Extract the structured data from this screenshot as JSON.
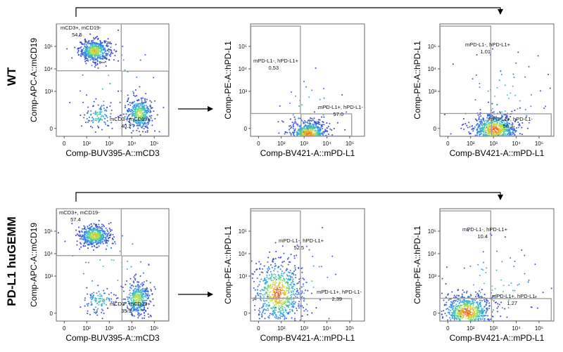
{
  "rows": [
    {
      "label": "WT"
    },
    {
      "label": "PD-L1 huGEMM"
    }
  ],
  "chart_data": [
    {
      "type": "scatter",
      "panel": "WT-CD3-CD19",
      "xlabel": "Comp-BUV395-A::mCD3",
      "ylabel": "Comp-APC-A::mCD19",
      "xticks": [
        "0",
        "10²",
        "10³",
        "10⁴",
        "10⁵"
      ],
      "yticks": [
        "0",
        "10³",
        "10⁴",
        "10⁵"
      ],
      "populations": [
        {
          "name": "mCD3+, mCD19-",
          "percent": "54.5",
          "center": [
            1.7,
            3.8
          ],
          "spread": [
            0.35,
            0.25
          ],
          "density": 0.55
        },
        {
          "name": "mCD3-, mCD19+",
          "percent": "40.2",
          "center": [
            3.7,
            1.0
          ],
          "spread": [
            0.3,
            0.38
          ],
          "density": 0.42
        },
        {
          "name": "double-negative",
          "center": [
            1.9,
            0.9
          ],
          "spread": [
            0.35,
            0.32
          ],
          "density": 0.12
        },
        {
          "name": "scatter",
          "center": [
            2.5,
            2.5
          ],
          "spread": [
            1.1,
            1.1
          ],
          "density": 0.04
        }
      ],
      "gates": [
        {
          "label": "mCD3+, mCD19-",
          "x": [
            0,
            2.9
          ],
          "y": [
            2.9,
            5.0
          ]
        },
        {
          "label": "mCD3-, mCD19+",
          "x": [
            2.9,
            5.0
          ],
          "y": [
            0,
            2.9
          ]
        }
      ]
    },
    {
      "type": "scatter",
      "panel": "WT-CD3neg-PDL1",
      "xlabel": "Comp-BV421-A::mPD-L1",
      "ylabel": "Comp-PE-A::hPD-L1",
      "xticks": [
        "0",
        "10²",
        "10³",
        "10⁴",
        "10⁵"
      ],
      "yticks": [
        "0",
        "10³",
        "10⁴",
        "10⁵"
      ],
      "populations": [
        {
          "name": "main",
          "center": [
            2.55,
            0.1
          ],
          "spread": [
            0.42,
            0.3
          ],
          "density": 0.75
        },
        {
          "name": "scatter",
          "center": [
            2.6,
            1.2
          ],
          "spread": [
            0.8,
            0.9
          ],
          "density": 0.04
        }
      ],
      "gates": [
        {
          "label": "mPD-L1-, hPD-L1+",
          "percent": "0.53",
          "x": [
            0,
            2.2
          ],
          "y": [
            1.0,
            4.9
          ]
        },
        {
          "label": "mPD-L1+, hPD-L1-",
          "percent": "57.0",
          "x": [
            2.2,
            4.45
          ],
          "y": [
            0,
            1.0
          ]
        }
      ]
    },
    {
      "type": "scatter",
      "panel": "WT-CD19pos-PDL1",
      "xlabel": "Comp-BV421-A::mPD-L1",
      "ylabel": "Comp-PE-A::hPD-L1",
      "xticks": [
        "0",
        "10²",
        "10³",
        "10⁴",
        "10⁵"
      ],
      "yticks": [
        "0",
        "10³",
        "10⁴",
        "10⁵"
      ],
      "populations": [
        {
          "name": "main",
          "center": [
            2.4,
            0.3
          ],
          "spread": [
            0.5,
            0.35
          ],
          "density": 0.8
        },
        {
          "name": "scatter",
          "center": [
            2.8,
            1.6
          ],
          "spread": [
            1.1,
            1.2
          ],
          "density": 0.07
        }
      ],
      "gates": [
        {
          "label": "mPD-L1-, hPD-L1+",
          "percent": "1.01",
          "x": [
            0,
            2.25
          ],
          "y": [
            1.0,
            4.9
          ]
        },
        {
          "label": "mPD-L1+, hPD-L1-",
          "percent": "58.3",
          "x": [
            2.25,
            4.9
          ],
          "y": [
            0,
            1.0
          ]
        }
      ]
    },
    {
      "type": "scatter",
      "panel": "huGEMM-CD3-CD19",
      "xlabel": "Comp-BUV395-A::mCD3",
      "ylabel": "Comp-APC-A::mCD19",
      "xticks": [
        "0",
        "10²",
        "10³",
        "10⁴",
        "10⁵"
      ],
      "yticks": [
        "0",
        "10³",
        "10⁴",
        "10⁵"
      ],
      "populations": [
        {
          "name": "mCD3+, mCD19-",
          "percent": "57.4",
          "center": [
            1.7,
            3.8
          ],
          "spread": [
            0.35,
            0.25
          ],
          "density": 0.55
        },
        {
          "name": "mCD3-, mCD19+",
          "percent": "35.9",
          "center": [
            3.6,
            1.0
          ],
          "spread": [
            0.3,
            0.38
          ],
          "density": 0.42
        },
        {
          "name": "double-negative",
          "center": [
            1.9,
            0.9
          ],
          "spread": [
            0.35,
            0.32
          ],
          "density": 0.12
        },
        {
          "name": "scatter",
          "center": [
            2.5,
            2.5
          ],
          "spread": [
            1.1,
            1.1
          ],
          "density": 0.04
        }
      ],
      "gates": [
        {
          "label": "mCD3+, mCD19-",
          "x": [
            0,
            2.9
          ],
          "y": [
            2.9,
            5.0
          ]
        },
        {
          "label": "mCD3-, mCD19+",
          "x": [
            2.9,
            5.0
          ],
          "y": [
            0,
            2.9
          ]
        }
      ]
    },
    {
      "type": "scatter",
      "panel": "huGEMM-CD3neg-PDL1",
      "xlabel": "Comp-BV421-A::mPD-L1",
      "ylabel": "Comp-PE-A::hPD-L1",
      "xticks": [
        "0",
        "10²",
        "10³",
        "10⁴",
        "10⁵"
      ],
      "yticks": [
        "0",
        "10³",
        "10⁴",
        "10⁵"
      ],
      "populations": [
        {
          "name": "main",
          "center": [
            1.2,
            1.25
          ],
          "spread": [
            0.55,
            0.75
          ],
          "density": 0.8
        },
        {
          "name": "scatter",
          "center": [
            2.4,
            1.6
          ],
          "spread": [
            1.0,
            1.1
          ],
          "density": 0.05
        }
      ],
      "gates": [
        {
          "label": "mPD-L1-, hPD-L1+",
          "percent": "52.5",
          "x": [
            0,
            2.2
          ],
          "y": [
            1.0,
            4.9
          ]
        },
        {
          "label": "mPD-L1+, hPD-L1-",
          "percent": "2.39",
          "x": [
            2.2,
            4.45
          ],
          "y": [
            0,
            1.0
          ]
        }
      ]
    },
    {
      "type": "scatter",
      "panel": "huGEMM-CD19pos-PDL1",
      "xlabel": "Comp-BV421-A::mPD-L1",
      "ylabel": "Comp-PE-A::hPD-L1",
      "xticks": [
        "0",
        "10²",
        "10³",
        "10⁴",
        "10⁵"
      ],
      "yticks": [
        "0",
        "10³",
        "10⁴",
        "10⁵"
      ],
      "populations": [
        {
          "name": "main",
          "center": [
            1.2,
            0.4
          ],
          "spread": [
            0.55,
            0.4
          ],
          "density": 0.8
        },
        {
          "name": "scatter",
          "center": [
            2.4,
            1.5
          ],
          "spread": [
            1.1,
            1.2
          ],
          "density": 0.08
        }
      ],
      "gates": [
        {
          "label": "mPD-L1-, hPD-L1+",
          "percent": "10.4",
          "x": [
            0,
            2.25
          ],
          "y": [
            1.0,
            4.9
          ]
        },
        {
          "label": "mPD-L1+, hPD-L1-",
          "percent": "1.27",
          "x": [
            2.25,
            4.9
          ],
          "y": [
            0,
            1.0
          ]
        }
      ]
    }
  ]
}
